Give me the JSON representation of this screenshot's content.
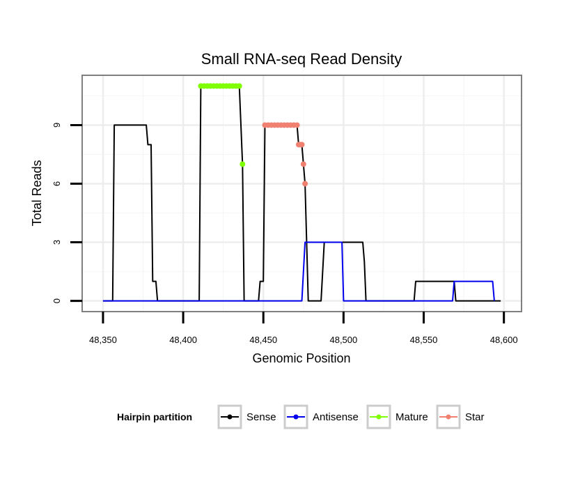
{
  "chart_data": {
    "type": "line",
    "title": "Small RNA-seq Read Density",
    "xlabel": "Genomic Position",
    "ylabel": "Total Reads",
    "xlim": [
      48337,
      48611
    ],
    "ylim": [
      -0.55,
      11.55
    ],
    "x_ticks": [
      {
        "value": 48350,
        "label": "48,350"
      },
      {
        "value": 48400,
        "label": "48,400"
      },
      {
        "value": 48450,
        "label": "48,450"
      },
      {
        "value": 48500,
        "label": "48,500"
      },
      {
        "value": 48550,
        "label": "48,550"
      },
      {
        "value": 48600,
        "label": "48,600"
      }
    ],
    "y_ticks": [
      {
        "value": 0,
        "label": "0"
      },
      {
        "value": 3,
        "label": "3"
      },
      {
        "value": 6,
        "label": "6"
      },
      {
        "value": 9,
        "label": "9"
      }
    ],
    "grid": true,
    "series": [
      {
        "name": "Sense",
        "color": "#000000",
        "style": "line",
        "points": [
          [
            48350,
            0
          ],
          [
            48356,
            0
          ],
          [
            48357,
            9
          ],
          [
            48377,
            9
          ],
          [
            48378,
            8
          ],
          [
            48380,
            8
          ],
          [
            48381,
            1
          ],
          [
            48383,
            1
          ],
          [
            48384,
            0
          ],
          [
            48410,
            0
          ],
          [
            48411,
            11
          ],
          [
            48435,
            11
          ],
          [
            48437,
            7
          ],
          [
            48438,
            0
          ],
          [
            48447,
            0
          ],
          [
            48448,
            1
          ],
          [
            48450,
            1
          ],
          [
            48451,
            9
          ],
          [
            48471,
            9
          ],
          [
            48472,
            8
          ],
          [
            48474,
            8
          ],
          [
            48475,
            7
          ],
          [
            48476,
            6
          ],
          [
            48477,
            3
          ],
          [
            48478,
            0
          ],
          [
            48486,
            0
          ],
          [
            48488,
            3
          ],
          [
            48512,
            3
          ],
          [
            48513,
            2
          ],
          [
            48514,
            0
          ],
          [
            48544,
            0
          ],
          [
            48545,
            1
          ],
          [
            48569,
            1
          ],
          [
            48570,
            0
          ],
          [
            48598,
            0
          ]
        ]
      },
      {
        "name": "Antisense",
        "color": "#0000ee",
        "style": "line",
        "points": [
          [
            48350,
            0
          ],
          [
            48474,
            0
          ],
          [
            48476,
            3
          ],
          [
            48499,
            3
          ],
          [
            48500,
            0
          ],
          [
            48568,
            0
          ],
          [
            48569,
            1
          ],
          [
            48593,
            1
          ],
          [
            48594,
            0
          ]
        ]
      },
      {
        "name": "Mature",
        "color": "#7fff00",
        "style": "points",
        "points": [
          [
            48411,
            11
          ],
          [
            48413,
            11
          ],
          [
            48415,
            11
          ],
          [
            48417,
            11
          ],
          [
            48419,
            11
          ],
          [
            48421,
            11
          ],
          [
            48423,
            11
          ],
          [
            48425,
            11
          ],
          [
            48427,
            11
          ],
          [
            48429,
            11
          ],
          [
            48431,
            11
          ],
          [
            48433,
            11
          ],
          [
            48435,
            11
          ],
          [
            48437,
            7
          ]
        ]
      },
      {
        "name": "Star",
        "color": "#f08070",
        "style": "points",
        "points": [
          [
            48451,
            9
          ],
          [
            48453,
            9
          ],
          [
            48455,
            9
          ],
          [
            48457,
            9
          ],
          [
            48459,
            9
          ],
          [
            48461,
            9
          ],
          [
            48463,
            9
          ],
          [
            48465,
            9
          ],
          [
            48467,
            9
          ],
          [
            48469,
            9
          ],
          [
            48471,
            9
          ],
          [
            48472,
            8
          ],
          [
            48473,
            8
          ],
          [
            48474,
            8
          ],
          [
            48475,
            7
          ],
          [
            48476,
            6
          ]
        ]
      }
    ],
    "legend": {
      "title": "Hairpin partition",
      "position": "bottom",
      "entries": [
        "Sense",
        "Antisense",
        "Mature",
        "Star"
      ]
    }
  }
}
